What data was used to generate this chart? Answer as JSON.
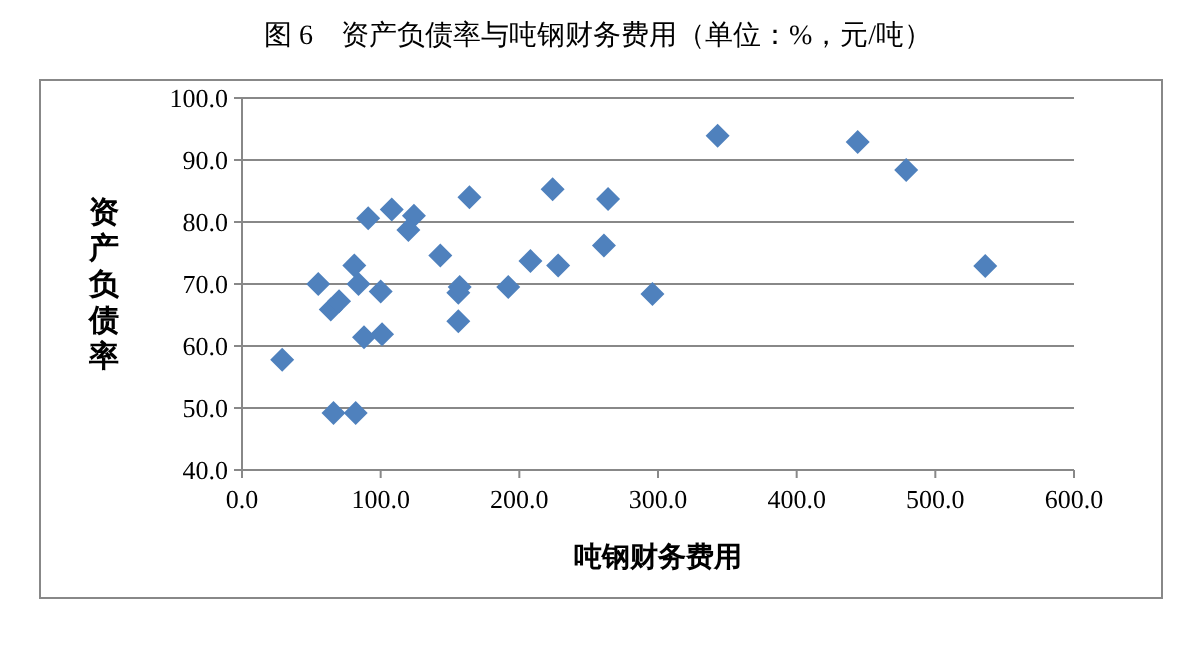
{
  "chart_data": {
    "type": "scatter",
    "title": "图 6　资产负债率与吨钢财务费用（单位：%，元/吨）",
    "xlabel": "吨钢财务费用",
    "ylabel": "资产负债率",
    "x": [
      29,
      55,
      64,
      70,
      81,
      84,
      66,
      82,
      91,
      88,
      100,
      101,
      108,
      124,
      120,
      143,
      156,
      157,
      156,
      164,
      192,
      208,
      224,
      228,
      261,
      264,
      296,
      343,
      444,
      479,
      536
    ],
    "series": [
      {
        "color": "#4f81bd",
        "values": [
          57.8,
          70.0,
          65.9,
          67.2,
          73.0,
          70.0,
          49.2,
          49.2,
          80.6,
          61.4,
          68.8,
          61.9,
          82.0,
          81.0,
          78.7,
          74.6,
          68.6,
          69.5,
          64.0,
          84.0,
          69.5,
          73.7,
          85.3,
          73.0,
          76.2,
          83.7,
          68.4,
          93.9,
          92.9,
          88.4,
          72.9
        ]
      }
    ],
    "marker": "diamond",
    "xlim": [
      0,
      600
    ],
    "ylim": [
      40,
      100
    ],
    "xticks": [
      {
        "value": 0,
        "label": "0.0"
      },
      {
        "value": 100,
        "label": "100.0"
      },
      {
        "value": 200,
        "label": "200.0"
      },
      {
        "value": 300,
        "label": "300.0"
      },
      {
        "value": 400,
        "label": "400.0"
      },
      {
        "value": 500,
        "label": "500.0"
      },
      {
        "value": 600,
        "label": "600.0"
      }
    ],
    "yticks": [
      {
        "value": 40,
        "label": "40.0"
      },
      {
        "value": 50,
        "label": "50.0"
      },
      {
        "value": 60,
        "label": "60.0"
      },
      {
        "value": 70,
        "label": "70.0"
      },
      {
        "value": 80,
        "label": "80.0"
      },
      {
        "value": 90,
        "label": "90.0"
      },
      {
        "value": 100,
        "label": "100.0"
      }
    ],
    "grid": "y"
  }
}
